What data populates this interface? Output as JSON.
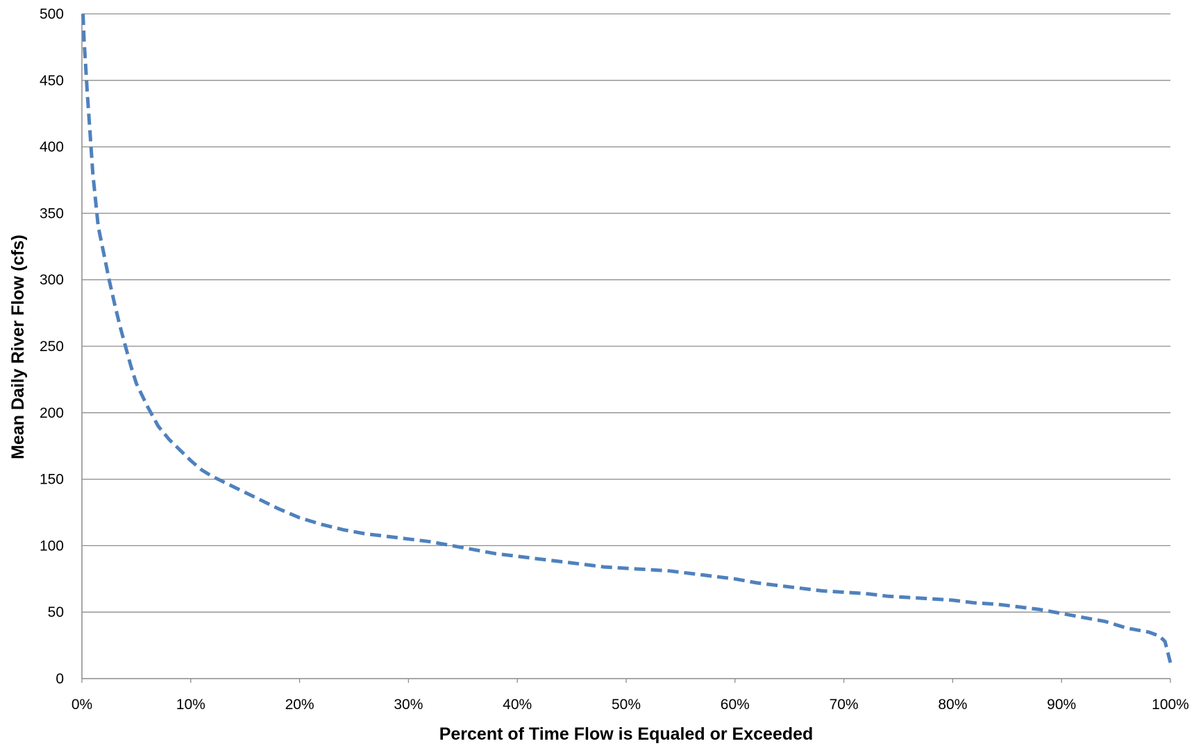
{
  "chart_data": {
    "type": "line",
    "title": "",
    "xlabel": "Percent of Time Flow is Equaled or Exceeded",
    "ylabel": "Mean Daily River Flow (cfs)",
    "xlim": [
      0,
      100
    ],
    "ylim": [
      0,
      500
    ],
    "x_tick_values": [
      0,
      10,
      20,
      30,
      40,
      50,
      60,
      70,
      80,
      90,
      100
    ],
    "x_tick_labels": [
      "0%",
      "10%",
      "20%",
      "30%",
      "40%",
      "50%",
      "60%",
      "70%",
      "80%",
      "90%",
      "100%"
    ],
    "y_tick_values": [
      0,
      50,
      100,
      150,
      200,
      250,
      300,
      350,
      400,
      450,
      500
    ],
    "y_tick_labels": [
      "0",
      "50",
      "100",
      "150",
      "200",
      "250",
      "300",
      "350",
      "400",
      "450",
      "500"
    ],
    "grid": "horizontal",
    "legend": "none",
    "series": [
      {
        "color": "#4f81bd",
        "line_style": "dashed",
        "x": [
          0.1,
          0.2,
          0.35,
          0.5,
          0.75,
          1,
          1.5,
          2,
          2.5,
          3,
          3.5,
          4,
          4.5,
          5,
          6,
          7,
          8,
          9,
          10,
          11,
          12,
          13,
          14,
          15,
          16,
          18,
          20,
          22,
          24,
          26,
          28,
          30,
          32,
          34,
          36,
          38,
          40,
          42,
          44,
          46,
          48,
          50,
          52,
          54,
          56,
          58,
          60,
          62,
          64,
          66,
          68,
          70,
          72,
          74,
          76,
          78,
          80,
          82,
          84,
          86,
          88,
          90,
          92,
          94,
          96,
          98,
          99,
          99.5,
          100
        ],
        "y": [
          500,
          480,
          460,
          440,
          410,
          380,
          340,
          320,
          300,
          282,
          265,
          250,
          235,
          222,
          205,
          190,
          180,
          172,
          164,
          157,
          152,
          148,
          144,
          140,
          136,
          128,
          121,
          116,
          112,
          109,
          107,
          105,
          103,
          100,
          97,
          94,
          92,
          90,
          88,
          86,
          84,
          83,
          82,
          81,
          79,
          77,
          75,
          72,
          70,
          68,
          66,
          65,
          64,
          62,
          61,
          60,
          59,
          57,
          56,
          54,
          52,
          49,
          46,
          43,
          38,
          35,
          32,
          28,
          12
        ]
      }
    ]
  }
}
